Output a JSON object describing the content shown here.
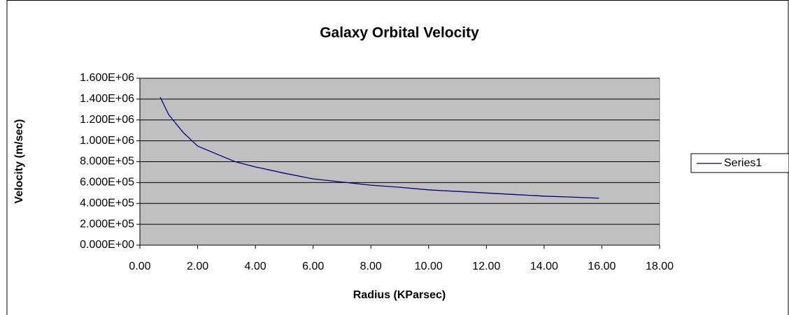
{
  "chart_data": {
    "type": "line",
    "title": "Galaxy Orbital Velocity",
    "x_label": "Radius (KParsec)",
    "y_label": "Velocity (m/sec)",
    "x": [
      0.7,
      1.0,
      1.5,
      2.0,
      2.6,
      3.3,
      4,
      5,
      6,
      7,
      8,
      9,
      10,
      11,
      12,
      13,
      14,
      15,
      15.9
    ],
    "series": [
      {
        "name": "Series1",
        "color": "#000080",
        "values": [
          1420000,
          1250000,
          1080000,
          950000,
          880000,
          800000,
          750000,
          690000,
          635000,
          605000,
          575000,
          555000,
          530000,
          515000,
          500000,
          485000,
          470000,
          460000,
          450000
        ]
      }
    ],
    "xlim": [
      0,
      18
    ],
    "xticks": [
      {
        "value": 0,
        "label": "0.00"
      },
      {
        "value": 2,
        "label": "2.00"
      },
      {
        "value": 4,
        "label": "4.00"
      },
      {
        "value": 6,
        "label": "6.00"
      },
      {
        "value": 8,
        "label": "8.00"
      },
      {
        "value": 10,
        "label": "10.00"
      },
      {
        "value": 12,
        "label": "12.00"
      },
      {
        "value": 14,
        "label": "14.00"
      },
      {
        "value": 16,
        "label": "16.00"
      },
      {
        "value": 18,
        "label": "18.00"
      }
    ],
    "ylim": [
      0,
      1600000
    ],
    "yticks": [
      {
        "value": 0,
        "label": "0.000E+00"
      },
      {
        "value": 200000,
        "label": "2.000E+05"
      },
      {
        "value": 400000,
        "label": "4.000E+05"
      },
      {
        "value": 600000,
        "label": "6.000E+05"
      },
      {
        "value": 800000,
        "label": "8.000E+05"
      },
      {
        "value": 1000000,
        "label": "1.000E+06"
      },
      {
        "value": 1200000,
        "label": "1.200E+06"
      },
      {
        "value": 1400000,
        "label": "1.400E+06"
      },
      {
        "value": 1600000,
        "label": "1.600E+06"
      }
    ],
    "grid": true,
    "legend": "right",
    "plot_background": "#c0c0c0"
  }
}
